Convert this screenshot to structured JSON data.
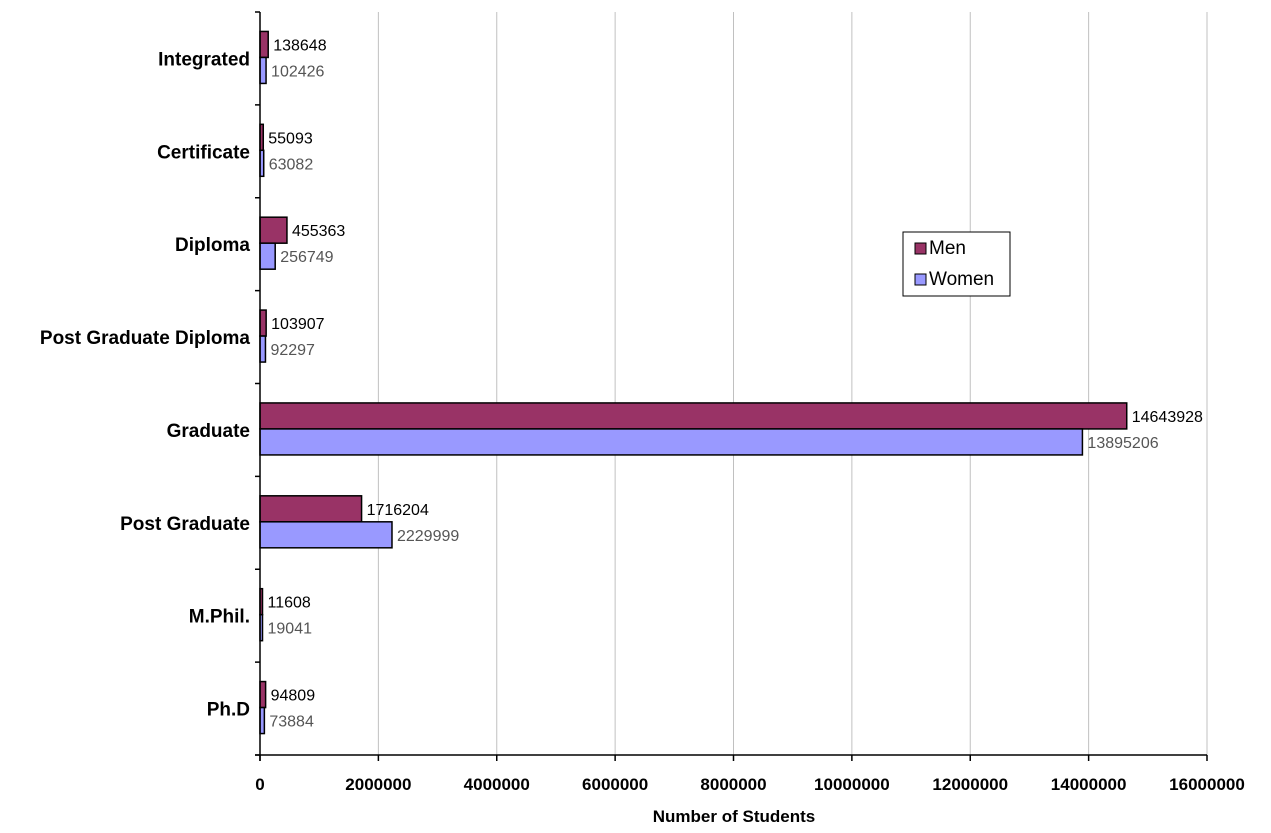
{
  "chart_data": {
    "type": "bar",
    "orientation": "horizontal",
    "categories": [
      "Integrated",
      "Certificate",
      "Diploma",
      "Post Graduate Diploma",
      "Graduate",
      "Post Graduate",
      "M.Phil.",
      "Ph.D"
    ],
    "series": [
      {
        "name": "Men",
        "values": [
          138648,
          55093,
          455363,
          103907,
          14643928,
          1716204,
          11608,
          94809
        ]
      },
      {
        "name": "Women",
        "values": [
          102426,
          63082,
          256749,
          92297,
          13895206,
          2229999,
          19041,
          73884
        ]
      }
    ],
    "xlabel": "Number of Students",
    "ylabel": "",
    "xlim": [
      0,
      16000000
    ],
    "xticks": [
      "0",
      "2000000",
      "4000000",
      "6000000",
      "8000000",
      "10000000",
      "12000000",
      "14000000",
      "16000000"
    ],
    "grid": "vertical",
    "legend": "right-center",
    "colors": {
      "Men": "#993366",
      "Women": "#9999ff",
      "Men_label": "#000000",
      "Women_label": "#555555",
      "grid": "#c0c0c0",
      "axis": "#000000"
    }
  }
}
